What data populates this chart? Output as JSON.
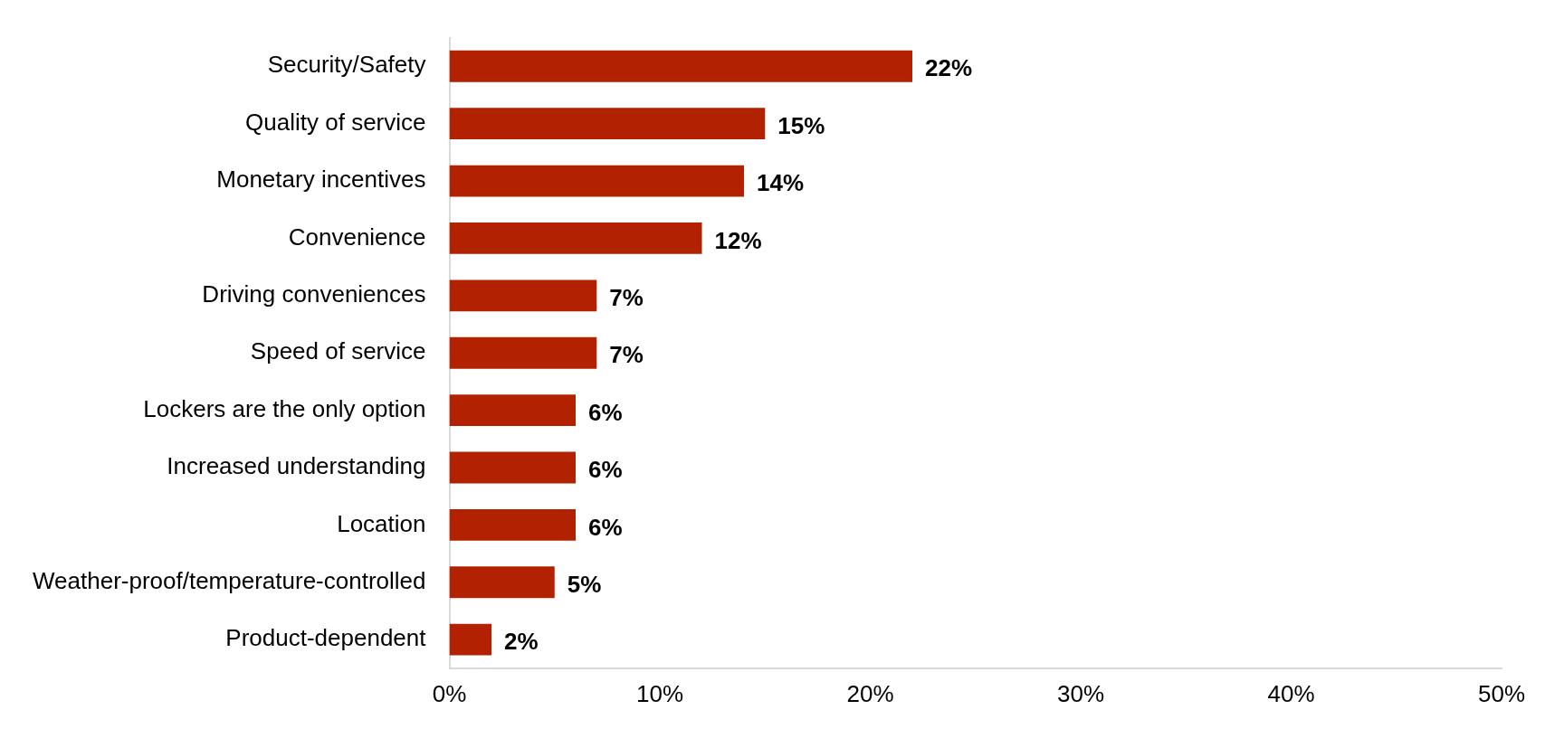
{
  "chart_data": {
    "type": "bar",
    "orientation": "horizontal",
    "categories": [
      "Security/Safety",
      "Quality of service",
      "Monetary incentives",
      "Convenience",
      "Driving conveniences",
      "Speed of service",
      "Lockers are the only option",
      "Increased understanding",
      "Location",
      "Weather-proof/temperature-controlled",
      "Product-dependent"
    ],
    "values": [
      22,
      15,
      14,
      12,
      7,
      7,
      6,
      6,
      6,
      5,
      2
    ],
    "value_labels": [
      "22%",
      "15%",
      "14%",
      "12%",
      "7%",
      "7%",
      "6%",
      "6%",
      "6%",
      "5%",
      "2%"
    ],
    "color": "#b22200",
    "xlim": [
      0,
      50
    ],
    "xticks": [
      {
        "value": 0,
        "label": "0%"
      },
      {
        "value": 10,
        "label": "10%"
      },
      {
        "value": 20,
        "label": "20%"
      },
      {
        "value": 30,
        "label": "30%"
      },
      {
        "value": 40,
        "label": "40%"
      },
      {
        "value": 50,
        "label": "50%"
      }
    ],
    "grid": false,
    "legend": false
  }
}
